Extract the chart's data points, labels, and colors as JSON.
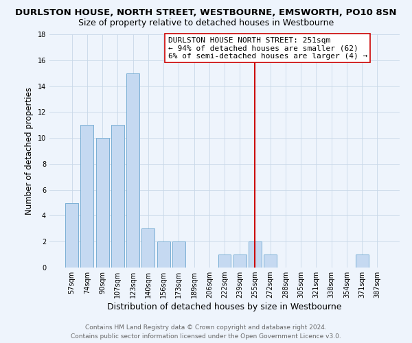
{
  "title": "DURLSTON HOUSE, NORTH STREET, WESTBOURNE, EMSWORTH, PO10 8SN",
  "subtitle": "Size of property relative to detached houses in Westbourne",
  "xlabel": "Distribution of detached houses by size in Westbourne",
  "ylabel": "Number of detached properties",
  "bar_labels": [
    "57sqm",
    "74sqm",
    "90sqm",
    "107sqm",
    "123sqm",
    "140sqm",
    "156sqm",
    "173sqm",
    "189sqm",
    "206sqm",
    "222sqm",
    "239sqm",
    "255sqm",
    "272sqm",
    "288sqm",
    "305sqm",
    "321sqm",
    "338sqm",
    "354sqm",
    "371sqm",
    "387sqm"
  ],
  "bar_values": [
    5,
    11,
    10,
    11,
    15,
    3,
    2,
    2,
    0,
    0,
    1,
    1,
    2,
    1,
    0,
    0,
    0,
    0,
    0,
    1,
    0
  ],
  "bar_color": "#c5d9f1",
  "bar_edge_color": "#7bafd4",
  "grid_color": "#c8d8e8",
  "vline_x_idx": 12,
  "vline_color": "#cc0000",
  "annotation_line1": "DURLSTON HOUSE NORTH STREET: 251sqm",
  "annotation_line2": "← 94% of detached houses are smaller (62)",
  "annotation_line3": "6% of semi-detached houses are larger (4) →",
  "ylim": [
    0,
    18
  ],
  "yticks": [
    0,
    2,
    4,
    6,
    8,
    10,
    12,
    14,
    16,
    18
  ],
  "footer_line1": "Contains HM Land Registry data © Crown copyright and database right 2024.",
  "footer_line2": "Contains public sector information licensed under the Open Government Licence v3.0.",
  "background_color": "#eef4fc",
  "plot_bg_color": "#eef4fc",
  "title_fontsize": 9.5,
  "subtitle_fontsize": 9,
  "xlabel_fontsize": 9,
  "ylabel_fontsize": 8.5,
  "tick_fontsize": 7,
  "footer_fontsize": 6.5,
  "annot_fontsize": 8
}
